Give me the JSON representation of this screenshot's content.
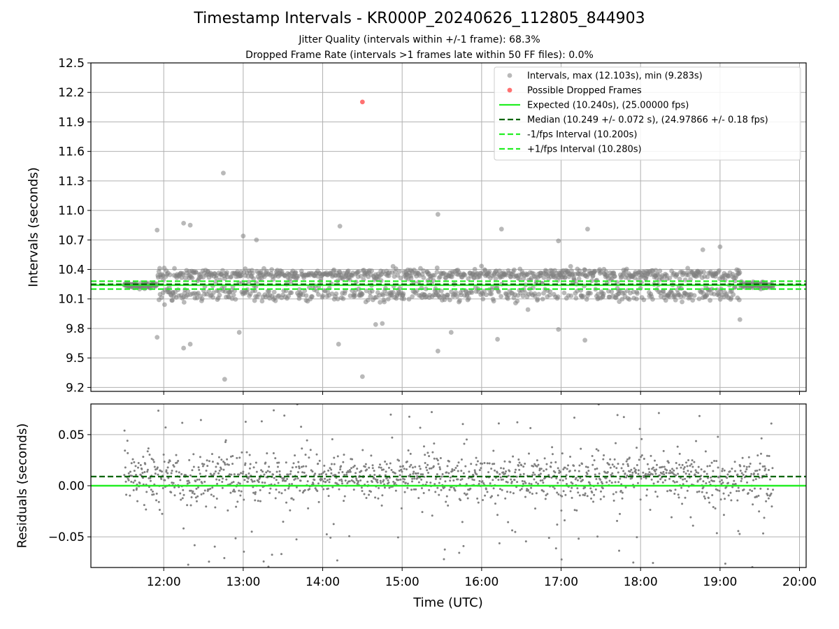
{
  "chart_data": [
    {
      "type": "scatter",
      "title": "Timestamp Intervals - KR000P_20240626_112805_844903",
      "subtitle_lines": [
        "Jitter Quality (intervals within +/-1 frame): 68.3%",
        "Dropped Frame Rate (intervals >1 frames late within 50 FF files): 0.0%"
      ],
      "xlabel": "",
      "ylabel": "Intervals (seconds)",
      "x_ticks": [
        "12:00",
        "13:00",
        "14:00",
        "15:00",
        "16:00",
        "17:00",
        "18:00",
        "19:00",
        "20:00"
      ],
      "xlim": [
        "11:05",
        "20:05"
      ],
      "ylim": [
        9.16,
        12.5
      ],
      "y_ticks": [
        "9.2",
        "9.5",
        "9.8",
        "10.1",
        "10.4",
        "10.7",
        "11.0",
        "11.3",
        "11.6",
        "11.9",
        "12.2",
        "12.5"
      ],
      "grid": true,
      "legend_position": "top-right",
      "legend": [
        "Intervals, max (12.103s), min (9.283s)",
        "Possible Dropped Frames",
        "Expected (10.240s), (25.00000 fps)",
        "Median (10.249 +/- 0.072 s), (24.97866 +/- 0.18 fps)",
        "-1/fps Interval (10.200s)",
        "+1/fps Interval (10.280s)"
      ],
      "reference_lines": {
        "expected": 10.24,
        "median": 10.249,
        "minus_1_fps": 10.2,
        "plus_1_fps": 10.28
      },
      "series_time_range": [
        "11:30",
        "19:40"
      ],
      "series_band": [
        10.0,
        10.45
      ],
      "dropped_frames": [
        {
          "x": "14:30",
          "y": 12.103
        }
      ],
      "outliers": [
        {
          "x": "11:55",
          "y": 10.8
        },
        {
          "x": "12:15",
          "y": 10.87
        },
        {
          "x": "12:20",
          "y": 10.85
        },
        {
          "x": "12:45",
          "y": 11.38
        },
        {
          "x": "13:00",
          "y": 10.74
        },
        {
          "x": "13:10",
          "y": 10.7
        },
        {
          "x": "14:13",
          "y": 10.84
        },
        {
          "x": "15:27",
          "y": 10.96
        },
        {
          "x": "16:15",
          "y": 10.81
        },
        {
          "x": "16:58",
          "y": 10.69
        },
        {
          "x": "17:20",
          "y": 10.81
        },
        {
          "x": "11:55",
          "y": 9.71
        },
        {
          "x": "12:15",
          "y": 9.6
        },
        {
          "x": "12:20",
          "y": 9.64
        },
        {
          "x": "12:46",
          "y": 9.283
        },
        {
          "x": "12:57",
          "y": 9.76
        },
        {
          "x": "14:12",
          "y": 9.64
        },
        {
          "x": "14:30",
          "y": 9.31
        },
        {
          "x": "15:27",
          "y": 9.57
        },
        {
          "x": "15:37",
          "y": 9.76
        },
        {
          "x": "16:12",
          "y": 9.69
        },
        {
          "x": "16:58",
          "y": 9.79
        },
        {
          "x": "17:18",
          "y": 9.68
        },
        {
          "x": "14:40",
          "y": 9.84
        },
        {
          "x": "14:45",
          "y": 9.85
        },
        {
          "x": "19:15",
          "y": 9.89
        },
        {
          "x": "19:00",
          "y": 10.63
        },
        {
          "x": "18:47",
          "y": 10.6
        }
      ]
    },
    {
      "type": "scatter",
      "title": "",
      "xlabel": "Time (UTC)",
      "ylabel": "Residuals (seconds)",
      "x_ticks": [
        "12:00",
        "13:00",
        "14:00",
        "15:00",
        "16:00",
        "17:00",
        "18:00",
        "19:00",
        "20:00"
      ],
      "xlim": [
        "11:05",
        "20:05"
      ],
      "ylim": [
        -0.08,
        0.08
      ],
      "y_ticks": [
        "−0.05",
        "0.00",
        "0.05"
      ],
      "grid": true,
      "reference_lines": {
        "zero": 0.0,
        "median_offset": 0.009
      },
      "series_time_range": [
        "11:30",
        "19:40"
      ]
    }
  ],
  "colors": {
    "points": "#808080",
    "dropped": "#ff4d4d",
    "expected": "#22ee22",
    "median": "#006400",
    "fps_bounds": "#22ee22",
    "grid": "#b0b0b0"
  }
}
